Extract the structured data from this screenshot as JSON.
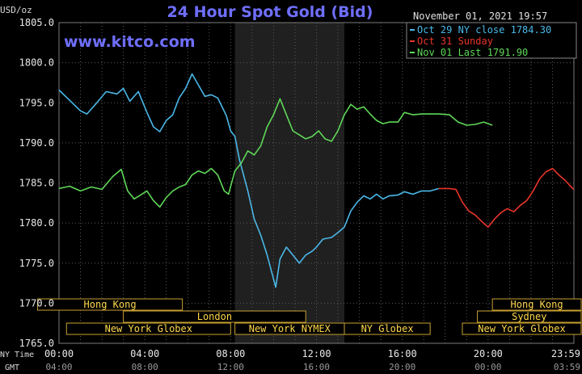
{
  "chart_data": {
    "type": "line",
    "title": "24 Hour Spot Gold (Bid)",
    "site": "www.kitco.com",
    "timestamp": "November 01, 2021 19:57",
    "unit_label": "USD/oz",
    "ylim": [
      1765,
      1805
    ],
    "yticks": [
      "1805.0",
      "1800.0",
      "1795.0",
      "1790.0",
      "1785.0",
      "1780.0",
      "1775.0",
      "1770.0",
      "1765.0"
    ],
    "xlim": [
      0,
      24
    ],
    "xticks_ny": [
      "00:00",
      "04:00",
      "08:00",
      "12:00",
      "16:00",
      "20:00",
      "23:59"
    ],
    "xticks_gmt": [
      "04:00",
      "08:00",
      "12:00",
      "16:00",
      "20:00",
      "00:00",
      "03:59"
    ],
    "xtick_hours": [
      0,
      4,
      8,
      12,
      16,
      20,
      23.98
    ],
    "row_label_ny": "NY Time",
    "row_label_gmt": "GMT",
    "shaded_hours": [
      8.2,
      13.3
    ],
    "grid": true,
    "legend_position": "top-right",
    "series": [
      {
        "name": "Oct 29 NY close 1784.30",
        "color": "#4ab8e8",
        "points": [
          [
            0,
            1796.6
          ],
          [
            0.5,
            1795.3
          ],
          [
            1,
            1794.0
          ],
          [
            1.3,
            1793.6
          ],
          [
            1.7,
            1794.8
          ],
          [
            2.2,
            1796.4
          ],
          [
            2.7,
            1796.1
          ],
          [
            3.0,
            1796.8
          ],
          [
            3.3,
            1795.2
          ],
          [
            3.7,
            1796.4
          ],
          [
            4.1,
            1793.8
          ],
          [
            4.4,
            1792.0
          ],
          [
            4.7,
            1791.4
          ],
          [
            5.0,
            1792.8
          ],
          [
            5.3,
            1793.5
          ],
          [
            5.6,
            1795.6
          ],
          [
            5.9,
            1796.8
          ],
          [
            6.2,
            1798.6
          ],
          [
            6.5,
            1797.2
          ],
          [
            6.8,
            1795.8
          ],
          [
            7.1,
            1796.0
          ],
          [
            7.4,
            1795.6
          ],
          [
            7.8,
            1793.4
          ],
          [
            8.0,
            1791.5
          ],
          [
            8.2,
            1790.8
          ],
          [
            8.4,
            1788.0
          ],
          [
            8.6,
            1786.0
          ],
          [
            8.8,
            1784.0
          ],
          [
            9.1,
            1780.5
          ],
          [
            9.4,
            1778.5
          ],
          [
            9.7,
            1776.0
          ],
          [
            9.9,
            1774.0
          ],
          [
            10.1,
            1772.0
          ],
          [
            10.3,
            1775.5
          ],
          [
            10.6,
            1777.0
          ],
          [
            10.9,
            1776.0
          ],
          [
            11.2,
            1775.0
          ],
          [
            11.5,
            1776.0
          ],
          [
            11.8,
            1776.5
          ],
          [
            12.0,
            1777.0
          ],
          [
            12.3,
            1778.0
          ],
          [
            12.7,
            1778.2
          ],
          [
            13.0,
            1778.8
          ],
          [
            13.3,
            1779.5
          ],
          [
            13.6,
            1781.5
          ],
          [
            13.9,
            1782.6
          ],
          [
            14.2,
            1783.4
          ],
          [
            14.5,
            1783.0
          ],
          [
            14.8,
            1783.6
          ],
          [
            15.1,
            1783.0
          ],
          [
            15.4,
            1783.4
          ],
          [
            15.8,
            1783.5
          ],
          [
            16.1,
            1783.9
          ],
          [
            16.5,
            1783.6
          ],
          [
            16.9,
            1784.0
          ],
          [
            17.3,
            1784.0
          ],
          [
            17.7,
            1784.3
          ]
        ]
      },
      {
        "name": "Oct 31 Sunday",
        "color": "#e8352a",
        "points": [
          [
            17.7,
            1784.3
          ],
          [
            18.2,
            1784.3
          ],
          [
            18.5,
            1784.2
          ],
          [
            18.8,
            1782.6
          ],
          [
            19.1,
            1781.5
          ],
          [
            19.4,
            1781.0
          ],
          [
            19.7,
            1780.2
          ],
          [
            20.0,
            1779.5
          ],
          [
            20.3,
            1780.5
          ],
          [
            20.6,
            1781.3
          ],
          [
            20.9,
            1781.8
          ],
          [
            21.2,
            1781.4
          ],
          [
            21.5,
            1782.2
          ],
          [
            21.8,
            1782.8
          ],
          [
            22.1,
            1784.0
          ],
          [
            22.4,
            1785.5
          ],
          [
            22.7,
            1786.4
          ],
          [
            23.0,
            1786.8
          ],
          [
            23.3,
            1786.0
          ],
          [
            23.6,
            1785.3
          ],
          [
            23.98,
            1784.2
          ]
        ]
      },
      {
        "name": "Nov 01 Last 1791.90",
        "color": "#5fd858",
        "points": [
          [
            0,
            1784.3
          ],
          [
            0.5,
            1784.6
          ],
          [
            1,
            1784.0
          ],
          [
            1.5,
            1784.5
          ],
          [
            2,
            1784.2
          ],
          [
            2.5,
            1785.8
          ],
          [
            2.9,
            1786.7
          ],
          [
            3.2,
            1784.0
          ],
          [
            3.5,
            1783.0
          ],
          [
            3.8,
            1783.5
          ],
          [
            4.1,
            1784.0
          ],
          [
            4.4,
            1782.8
          ],
          [
            4.7,
            1782.0
          ],
          [
            5.0,
            1783.2
          ],
          [
            5.3,
            1784.0
          ],
          [
            5.6,
            1784.5
          ],
          [
            5.9,
            1784.8
          ],
          [
            6.2,
            1786.0
          ],
          [
            6.5,
            1786.5
          ],
          [
            6.8,
            1786.2
          ],
          [
            7.1,
            1786.8
          ],
          [
            7.4,
            1786.0
          ],
          [
            7.7,
            1784.0
          ],
          [
            7.9,
            1783.6
          ],
          [
            8.2,
            1786.5
          ],
          [
            8.5,
            1787.5
          ],
          [
            8.8,
            1789.0
          ],
          [
            9.1,
            1788.5
          ],
          [
            9.4,
            1789.6
          ],
          [
            9.7,
            1792.0
          ],
          [
            10.0,
            1793.5
          ],
          [
            10.3,
            1795.5
          ],
          [
            10.6,
            1793.5
          ],
          [
            10.9,
            1791.5
          ],
          [
            11.2,
            1791.0
          ],
          [
            11.5,
            1790.5
          ],
          [
            11.8,
            1790.8
          ],
          [
            12.1,
            1791.5
          ],
          [
            12.4,
            1790.5
          ],
          [
            12.7,
            1790.2
          ],
          [
            13.0,
            1791.5
          ],
          [
            13.3,
            1793.5
          ],
          [
            13.6,
            1794.8
          ],
          [
            13.9,
            1794.2
          ],
          [
            14.2,
            1794.5
          ],
          [
            14.5,
            1793.6
          ],
          [
            14.8,
            1792.8
          ],
          [
            15.1,
            1792.4
          ],
          [
            15.4,
            1792.6
          ],
          [
            15.8,
            1792.6
          ],
          [
            16.1,
            1793.8
          ],
          [
            16.5,
            1793.5
          ],
          [
            16.9,
            1793.6
          ],
          [
            17.3,
            1793.6
          ],
          [
            17.7,
            1793.6
          ],
          [
            18.2,
            1793.5
          ],
          [
            18.6,
            1792.6
          ],
          [
            19.0,
            1792.2
          ],
          [
            19.4,
            1792.3
          ],
          [
            19.8,
            1792.6
          ],
          [
            20.2,
            1792.2
          ]
        ]
      }
    ],
    "session_rows": [
      [
        {
          "label": "Hong Kong",
          "start": -1,
          "end": 5.75
        },
        {
          "label": "Hong Kong",
          "start": 20.2,
          "end": 24.6
        }
      ],
      [
        {
          "label": "London",
          "start": 3.0,
          "end": 11.5
        },
        {
          "label": "Sydney",
          "start": 19.5,
          "end": 24.6
        }
      ],
      [
        {
          "label": "New York Globex",
          "start": 0.35,
          "end": 8.0
        },
        {
          "label": "New York NYMEX",
          "start": 8.2,
          "end": 13.3
        },
        {
          "label": "NY Globex",
          "start": 13.3,
          "end": 17.3
        },
        {
          "label": "New York Globex",
          "start": 18.8,
          "end": 24.6
        }
      ]
    ]
  }
}
